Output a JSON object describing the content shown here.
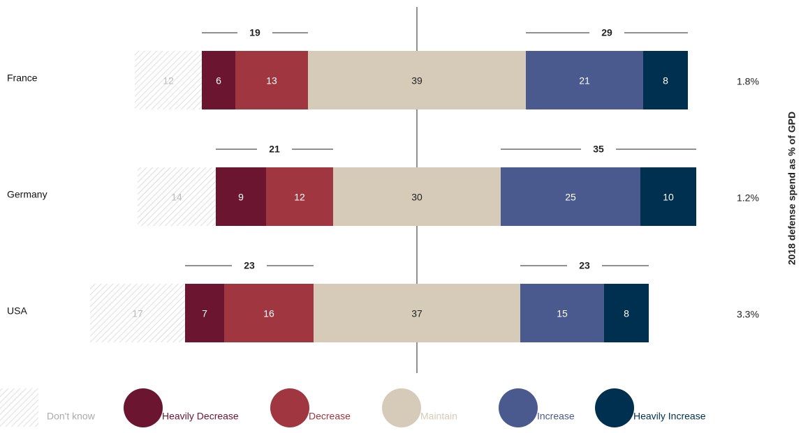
{
  "chart_data": {
    "type": "diverging_bar",
    "categories": [
      "France",
      "Germany",
      "USA"
    ],
    "series": [
      {
        "name": "Don't know",
        "color": "#c8c8c8",
        "values": [
          12,
          14,
          17
        ]
      },
      {
        "name": "Heavily Decrease",
        "color": "#6b1530",
        "values": [
          6,
          9,
          7
        ]
      },
      {
        "name": "Decrease",
        "color": "#a0363f",
        "values": [
          13,
          12,
          16
        ]
      },
      {
        "name": "Maintain",
        "color": "#d6cbb8",
        "values": [
          39,
          30,
          37
        ]
      },
      {
        "name": "Increase",
        "color": "#4a5a8e",
        "values": [
          21,
          25,
          15
        ]
      },
      {
        "name": "Heavily Increase",
        "color": "#00304f",
        "values": [
          8,
          10,
          8
        ]
      }
    ],
    "decrease_totals": [
      19,
      21,
      23
    ],
    "increase_totals": [
      29,
      35,
      23
    ],
    "side_label": "2018 defense spend as % of GPD",
    "side_values": [
      1.8,
      1.2,
      3.3
    ],
    "side_value_labels": [
      "1.8%",
      "1.2%",
      "3.3%"
    ]
  }
}
